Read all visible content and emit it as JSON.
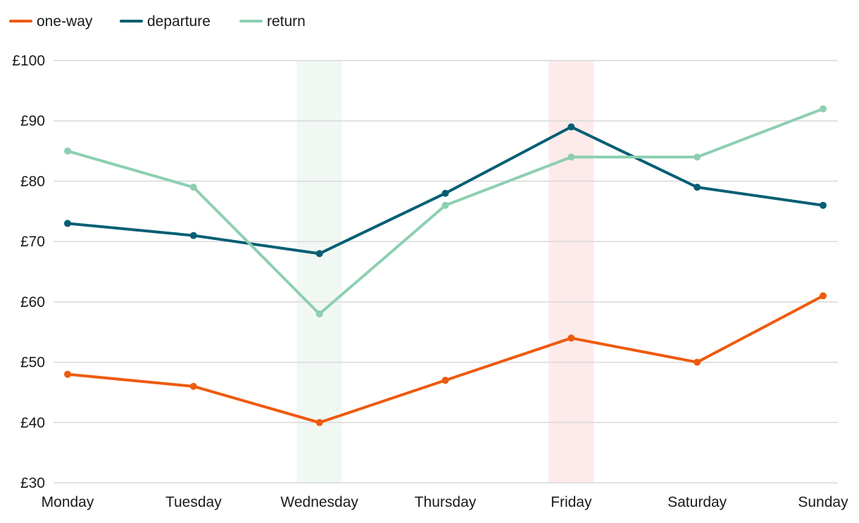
{
  "chart_data": {
    "type": "line",
    "title": "",
    "xlabel": "",
    "ylabel": "",
    "categories": [
      "Monday",
      "Tuesday",
      "Wednesday",
      "Thursday",
      "Friday",
      "Saturday",
      "Sunday"
    ],
    "y_ticks": [
      "£30",
      "£40",
      "£50",
      "£60",
      "£70",
      "£80",
      "£90",
      "£100"
    ],
    "y_tick_values": [
      30,
      40,
      50,
      60,
      70,
      80,
      90,
      100
    ],
    "ylim": [
      30,
      100
    ],
    "grid": "horizontal",
    "legend_position": "top-left",
    "highlights": [
      {
        "category": "Wednesday",
        "color": "#f1f8f4"
      },
      {
        "category": "Friday",
        "color": "#fdeaea"
      }
    ],
    "series": [
      {
        "name": "one-way",
        "color": "#ee5a0e",
        "values": [
          48,
          46,
          40,
          47,
          54,
          50,
          61
        ]
      },
      {
        "name": "departure",
        "color": "#055e73",
        "values": [
          73,
          71,
          68,
          78,
          89,
          79,
          76
        ]
      },
      {
        "name": "return",
        "color": "#8ccfb1",
        "values": [
          85,
          79,
          58,
          76,
          84,
          84,
          92
        ]
      }
    ]
  }
}
